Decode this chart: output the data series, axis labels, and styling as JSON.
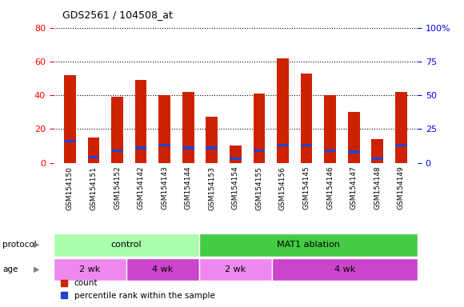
{
  "title": "GDS2561 / 104508_at",
  "samples": [
    "GSM154150",
    "GSM154151",
    "GSM154152",
    "GSM154142",
    "GSM154143",
    "GSM154144",
    "GSM154153",
    "GSM154154",
    "GSM154155",
    "GSM154156",
    "GSM154145",
    "GSM154146",
    "GSM154147",
    "GSM154148",
    "GSM154149"
  ],
  "count_values": [
    52,
    15,
    39,
    49,
    40,
    42,
    27,
    10,
    41,
    62,
    53,
    40,
    30,
    14,
    42
  ],
  "percentile_values": [
    16,
    4,
    9,
    11,
    13,
    11,
    11,
    3,
    9,
    13,
    13,
    9,
    8,
    3,
    13
  ],
  "bar_color": "#cc2200",
  "blue_color": "#2244cc",
  "left_ylim": [
    0,
    80
  ],
  "right_ylim": [
    0,
    100
  ],
  "left_yticks": [
    0,
    20,
    40,
    60,
    80
  ],
  "right_yticks": [
    0,
    25,
    50,
    75,
    100
  ],
  "right_yticklabels": [
    "0",
    "25",
    "50",
    "75",
    "100%"
  ],
  "grid_color": "#000000",
  "plot_bg": "#ffffff",
  "xticklabel_bg": "#cccccc",
  "protocol_colors": [
    "#aaffaa",
    "#44cc44"
  ],
  "protocol_texts": [
    "control",
    "MAT1 ablation"
  ],
  "protocol_sample_counts": [
    6,
    9
  ],
  "age_colors": [
    "#ee88ee",
    "#cc44cc",
    "#ee88ee",
    "#cc44cc"
  ],
  "age_texts": [
    "2 wk",
    "4 wk",
    "2 wk",
    "4 wk"
  ],
  "age_sample_counts": [
    3,
    3,
    3,
    6
  ],
  "legend_count_label": "count",
  "legend_percentile_label": "percentile rank within the sample",
  "bar_width": 0.5
}
